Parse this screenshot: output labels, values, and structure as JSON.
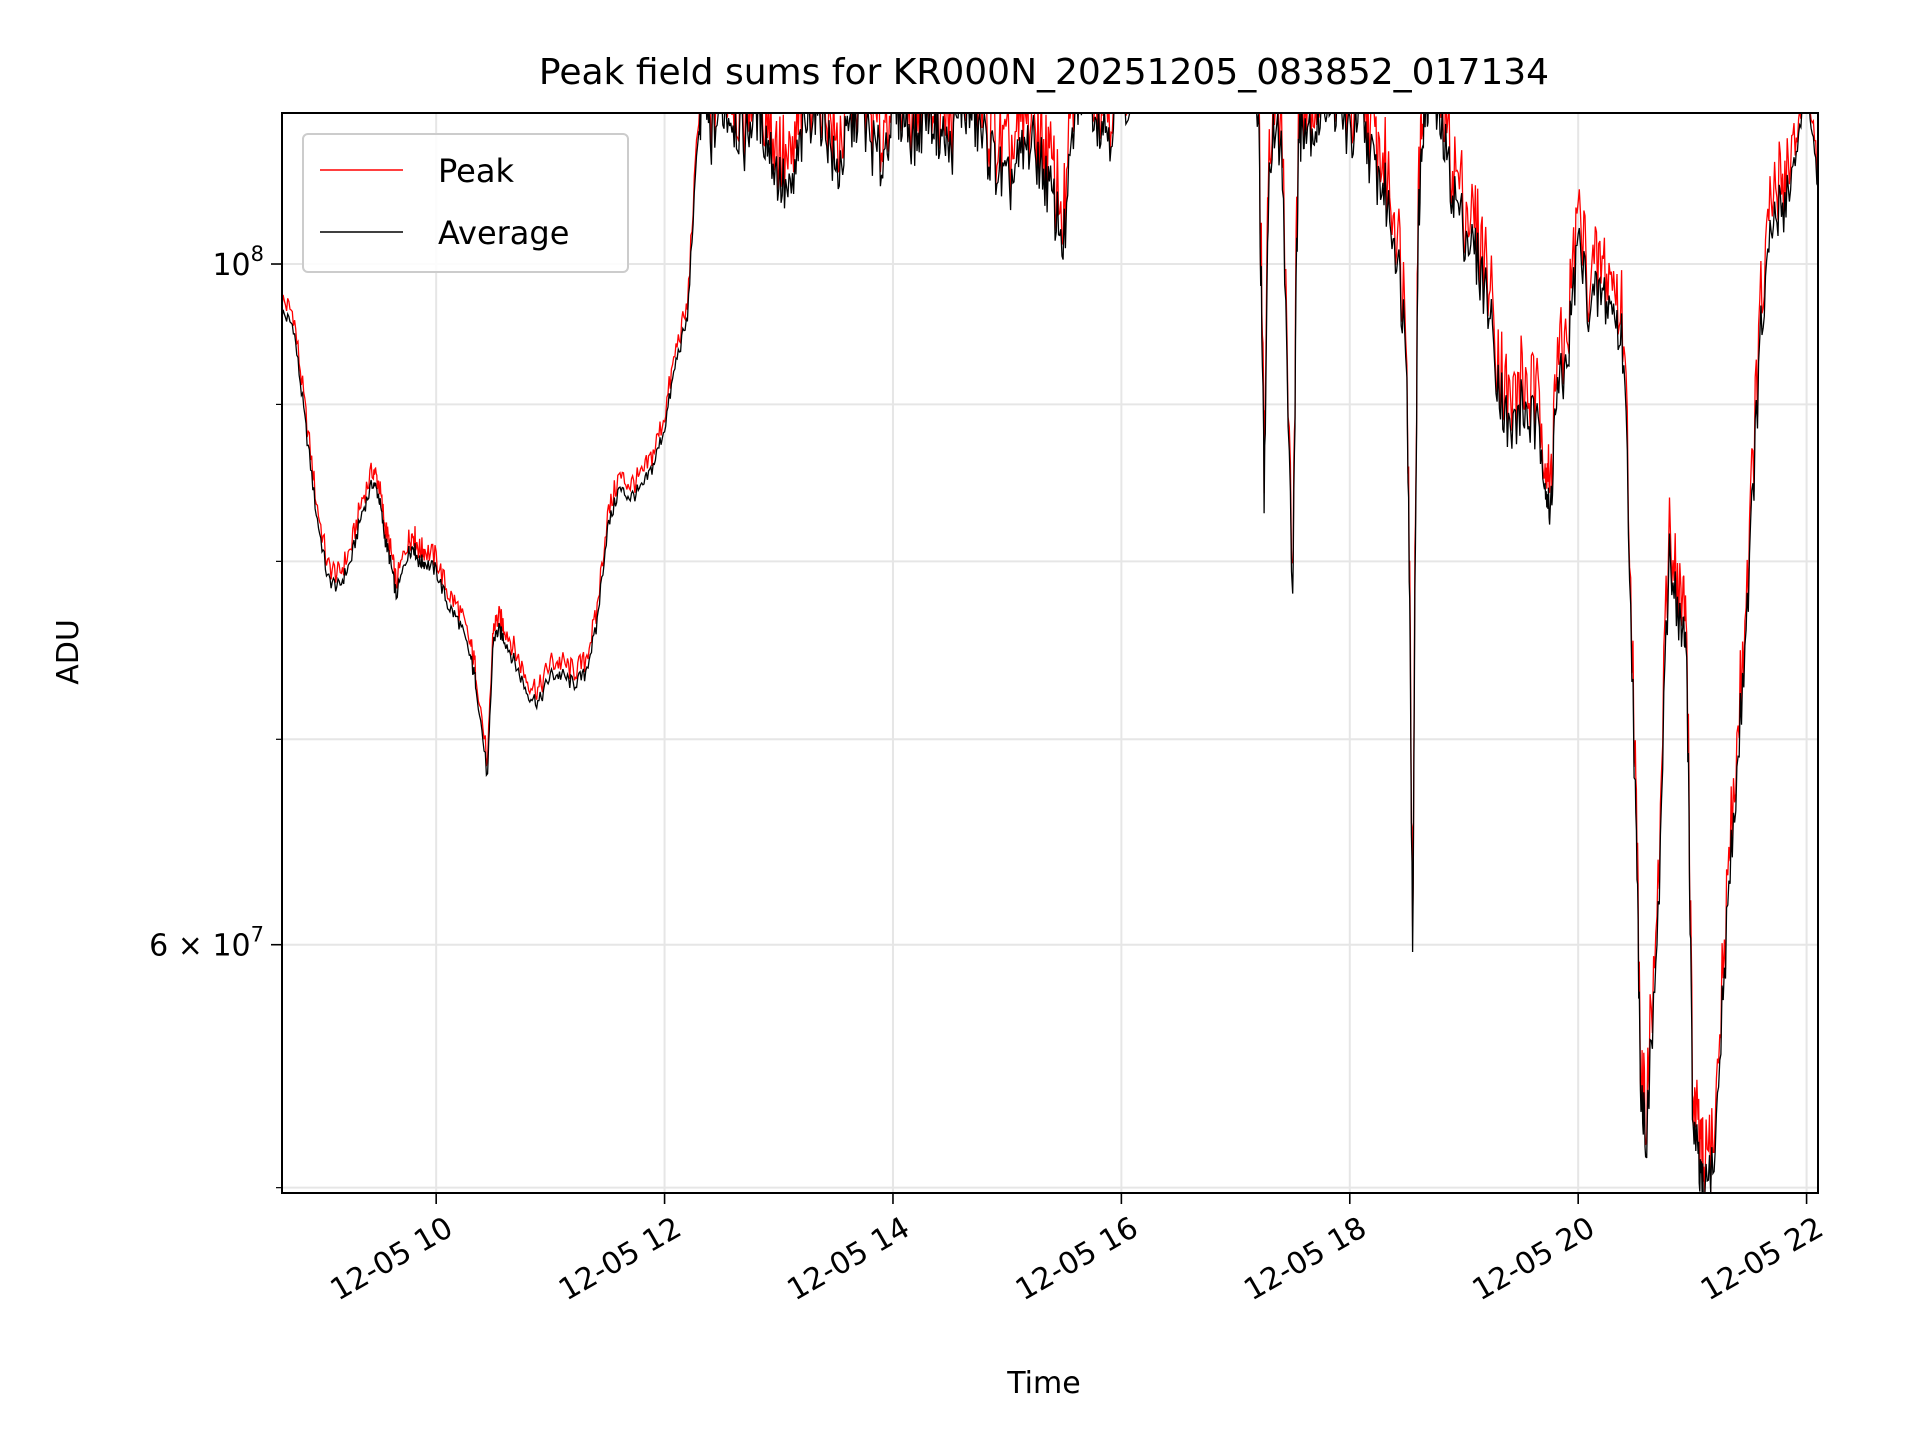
{
  "chart_data": {
    "type": "line",
    "title": "Peak field sums for KR000N_20251205_083852_017134",
    "xlabel": "Time",
    "ylabel": "ADU",
    "yscale": "log",
    "xlim_hours": [
      8.65,
      22.1
    ],
    "ylim": [
      49800000,
      112000000
    ],
    "x_ticks": [
      {
        "hour": 10,
        "label": "12-05 10"
      },
      {
        "hour": 12,
        "label": "12-05 12"
      },
      {
        "hour": 14,
        "label": "12-05 14"
      },
      {
        "hour": 16,
        "label": "12-05 16"
      },
      {
        "hour": 18,
        "label": "12-05 18"
      },
      {
        "hour": 20,
        "label": "12-05 20"
      },
      {
        "hour": 22,
        "label": "12-05 22"
      }
    ],
    "y_major_ticks": [
      {
        "value": 100000000,
        "base": "10",
        "exp": "8",
        "mantissa": ""
      },
      {
        "value": 60000000,
        "base": "10",
        "exp": "7",
        "mantissa": "6 × "
      }
    ],
    "y_minor_ticks": [
      50000000,
      70000000,
      80000000,
      90000000
    ],
    "grid": true,
    "legend_loc": "upper-left",
    "series": [
      {
        "name": "Peak",
        "color": "#ff0000"
      },
      {
        "name": "Average",
        "color": "#000000"
      }
    ],
    "x_hours": [
      8.65,
      8.75,
      8.85,
      8.95,
      9.05,
      9.15,
      9.25,
      9.35,
      9.45,
      9.5,
      9.55,
      9.6,
      9.65,
      9.75,
      9.8,
      9.85,
      9.9,
      10.0,
      10.1,
      10.2,
      10.3,
      10.35,
      10.45,
      10.5,
      10.55,
      10.6,
      10.7,
      10.8,
      10.9,
      11.0,
      11.1,
      11.2,
      11.3,
      11.4,
      11.5,
      11.6,
      11.7,
      11.8,
      11.9,
      12.0,
      12.1,
      12.2,
      12.3,
      12.35,
      12.4,
      12.5,
      12.6,
      12.7,
      12.8,
      12.9,
      13.0,
      13.1,
      13.2,
      13.3,
      13.4,
      13.5,
      13.6,
      13.7,
      13.8,
      13.9,
      14.0,
      14.1,
      14.2,
      14.3,
      14.4,
      14.5,
      14.6,
      14.7,
      14.8,
      14.9,
      15.0,
      15.1,
      15.2,
      15.3,
      15.4,
      15.5,
      15.6,
      15.7,
      15.8,
      15.9,
      16.0,
      16.2,
      16.4,
      16.6,
      16.8,
      17.0,
      17.1,
      17.2,
      17.25,
      17.3,
      17.4,
      17.5,
      17.55,
      17.6,
      17.7,
      17.8,
      17.9,
      18.0,
      18.1,
      18.2,
      18.3,
      18.4,
      18.5,
      18.55,
      18.6,
      18.65,
      18.7,
      18.8,
      18.9,
      19.0,
      19.1,
      19.2,
      19.3,
      19.4,
      19.5,
      19.6,
      19.7,
      19.75,
      19.8,
      19.9,
      20.0,
      20.1,
      20.2,
      20.3,
      20.4,
      20.5,
      20.55,
      20.6,
      20.7,
      20.8,
      20.9,
      20.95,
      21.0,
      21.05,
      21.1,
      21.2,
      21.3,
      21.4,
      21.5,
      21.6,
      21.7,
      21.8,
      21.9,
      22.0,
      22.1
    ],
    "average": [
      96500000,
      95500000,
      89000000,
      83000000,
      79000000,
      78500000,
      80000000,
      83000000,
      85000000,
      84000000,
      81500000,
      80000000,
      78000000,
      80500000,
      81000000,
      80000000,
      80000000,
      79500000,
      77500000,
      76500000,
      74500000,
      73000000,
      68000000,
      75500000,
      76000000,
      75500000,
      74000000,
      72500000,
      72000000,
      73500000,
      73500000,
      73000000,
      73500000,
      76000000,
      82000000,
      84500000,
      84000000,
      84500000,
      86000000,
      88500000,
      93000000,
      96000000,
      111000000,
      114000000,
      110000000,
      113000000,
      112000000,
      110000000,
      113000000,
      110000000,
      107000000,
      105000000,
      110000000,
      113000000,
      112000000,
      107000000,
      110000000,
      113000000,
      110000000,
      108000000,
      113000000,
      112000000,
      110000000,
      113000000,
      111000000,
      109000000,
      113000000,
      112000000,
      110000000,
      108000000,
      106000000,
      108000000,
      110000000,
      108000000,
      105000000,
      102000000,
      113000000,
      115000000,
      112000000,
      111000000,
      114000000,
      115000000,
      115500000,
      116000000,
      116500000,
      116000000,
      115000000,
      112000000,
      84000000,
      110000000,
      110000000,
      78000000,
      110000000,
      112000000,
      111000000,
      114000000,
      113000000,
      110000000,
      112000000,
      108000000,
      106000000,
      102000000,
      94000000,
      60000000,
      103000000,
      113000000,
      114000000,
      111000000,
      106000000,
      103000000,
      101000000,
      98000000,
      92000000,
      88000000,
      90000000,
      89000000,
      87000000,
      82000000,
      90000000,
      93000000,
      102000000,
      97000000,
      98000000,
      97000000,
      94000000,
      67000000,
      54000000,
      52000000,
      61000000,
      81000000,
      76000000,
      75000000,
      53000000,
      51000000,
      49500000,
      51500000,
      61000000,
      69000000,
      80000000,
      95000000,
      103000000,
      105000000,
      108000000,
      115000000,
      106000000
    ]
  }
}
